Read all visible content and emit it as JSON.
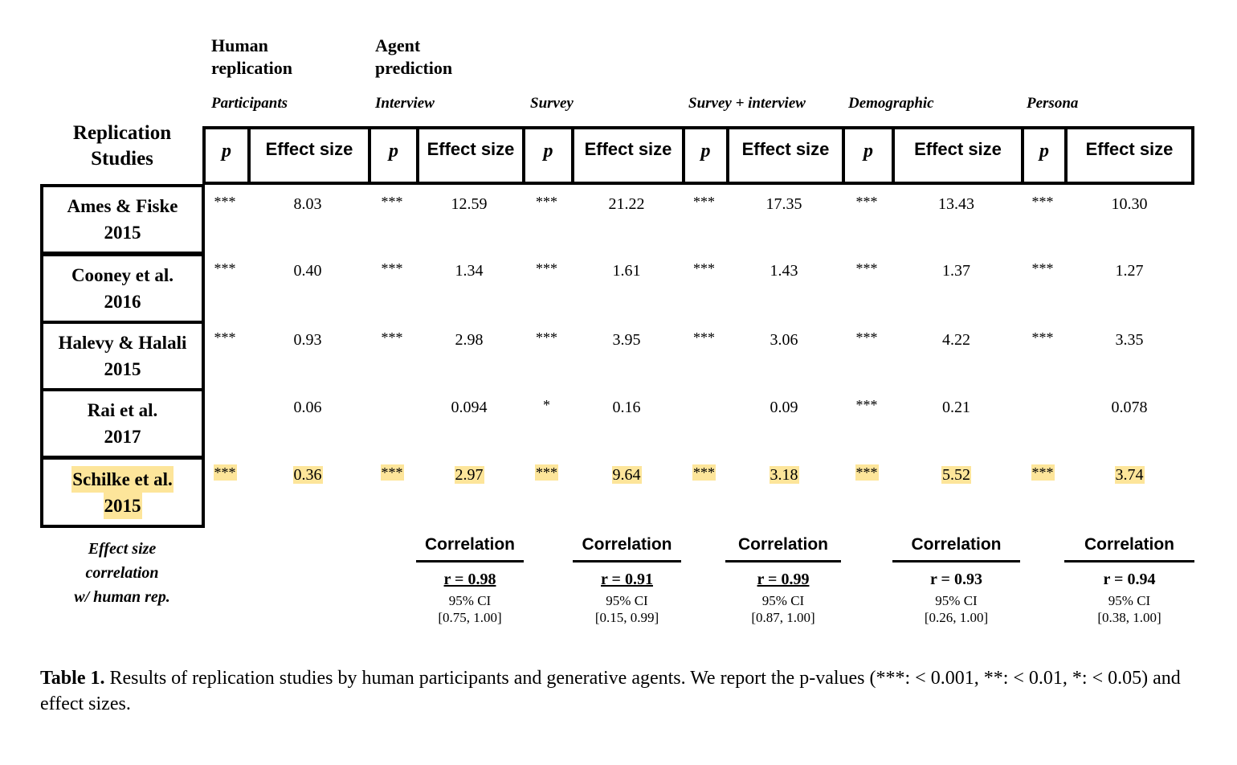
{
  "groups": {
    "human_replication": "Human\nreplication",
    "agent_prediction": "Agent\nprediction"
  },
  "conditions": [
    "Participants",
    "Interview",
    "Survey",
    "Survey + interview",
    "Demographic",
    "Persona"
  ],
  "replication_label": "Replication\nStudies",
  "col_p": "p",
  "col_effect": "Effect size",
  "studies": [
    {
      "name": "Ames & Fiske",
      "year": "2015",
      "highlight": false,
      "cells": [
        [
          "***",
          "8.03"
        ],
        [
          "***",
          "12.59"
        ],
        [
          "***",
          "21.22"
        ],
        [
          "***",
          "17.35"
        ],
        [
          "***",
          "13.43"
        ],
        [
          "***",
          "10.30"
        ]
      ]
    },
    {
      "name": "Cooney et al.",
      "year": "2016",
      "highlight": false,
      "cells": [
        [
          "***",
          "0.40"
        ],
        [
          "***",
          "1.34"
        ],
        [
          "***",
          "1.61"
        ],
        [
          "***",
          "1.43"
        ],
        [
          "***",
          "1.37"
        ],
        [
          "***",
          "1.27"
        ]
      ]
    },
    {
      "name": "Halevy & Halali",
      "year": "2015",
      "highlight": false,
      "cells": [
        [
          "***",
          "0.93"
        ],
        [
          "***",
          "2.98"
        ],
        [
          "***",
          "3.95"
        ],
        [
          "***",
          "3.06"
        ],
        [
          "***",
          "4.22"
        ],
        [
          "***",
          "3.35"
        ]
      ]
    },
    {
      "name": "Rai et al.",
      "year": "2017",
      "highlight": false,
      "cells": [
        [
          "",
          "0.06"
        ],
        [
          "",
          "0.094"
        ],
        [
          "*",
          "0.16"
        ],
        [
          "",
          "0.09"
        ],
        [
          "***",
          "0.21"
        ],
        [
          "",
          "0.078"
        ]
      ]
    },
    {
      "name": "Schilke et al.",
      "year": "2015",
      "highlight": true,
      "cells": [
        [
          "***",
          "0.36"
        ],
        [
          "***",
          "2.97"
        ],
        [
          "***",
          "9.64"
        ],
        [
          "***",
          "3.18"
        ],
        [
          "***",
          "5.52"
        ],
        [
          "***",
          "3.74"
        ]
      ]
    }
  ],
  "effect_corr_label": "Effect size\ncorrelation\nw/ human rep.",
  "correlation_title": "Correlation",
  "correlations": [
    {
      "r": "r = 0.98",
      "ci_label": "95% CI",
      "ci": "[0.75, 1.00]",
      "underline": true
    },
    {
      "r": "r = 0.91",
      "ci_label": "95% CI",
      "ci": "[0.15, 0.99]",
      "underline": true
    },
    {
      "r": "r = 0.99",
      "ci_label": "95% CI",
      "ci": "[0.87, 1.00]",
      "underline": true
    },
    {
      "r": "r = 0.93",
      "ci_label": "95% CI",
      "ci": "[0.26, 1.00]",
      "underline": false
    },
    {
      "r": "r = 0.94",
      "ci_label": "95% CI",
      "ci": "[0.38, 1.00]",
      "underline": false
    }
  ],
  "caption": {
    "label": "Table 1.",
    "text": " Results of replication studies by human participants and generative agents. We report the p-values (***: < 0.001, **: < 0.01, *: < 0.05) and effect sizes."
  },
  "colors": {
    "highlight": "#fde59a",
    "text": "#000000",
    "background": "#ffffff"
  }
}
